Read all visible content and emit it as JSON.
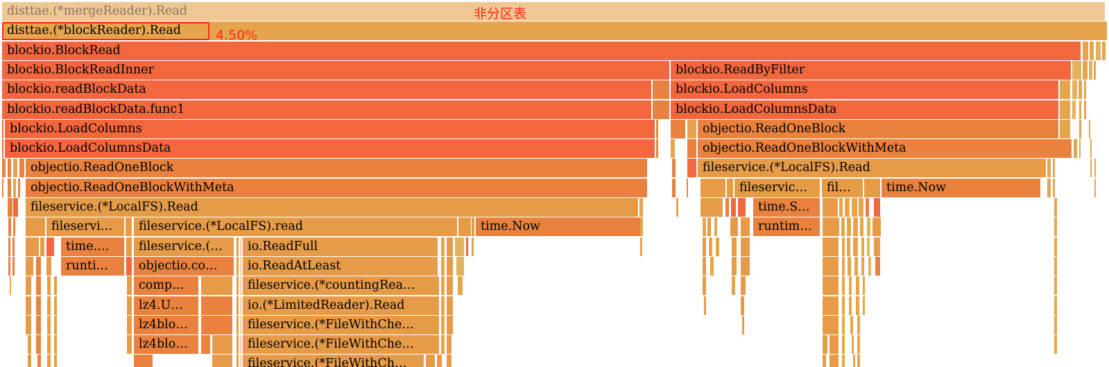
{
  "annotations": {
    "title": "非分区表",
    "percent": "4.50%"
  },
  "colors": {
    "root": "#efc793",
    "l1": "#e6a44c",
    "hot": "#f3673f",
    "warm": "#e8823e",
    "mid": "#e59b48",
    "yellow": "#e0b45c"
  },
  "frames": [
    {
      "label": "disttae.(*mergeReader).Read",
      "color": "root",
      "muted": true
    },
    {
      "label": "disttae.(*blockReader).Read",
      "color": "l1"
    },
    {
      "label": "blockio.BlockRead",
      "color": "hot"
    },
    {
      "label": "blockio.BlockReadInner",
      "color": "hot"
    },
    {
      "label": "blockio.ReadByFilter",
      "color": "hot"
    },
    {
      "label": "blockio.readBlockData",
      "color": "hot"
    },
    {
      "label": "blockio.LoadColumns",
      "color": "hot"
    },
    {
      "label": "blockio.readBlockData.func1",
      "color": "hot"
    },
    {
      "label": "blockio.LoadColumnsData",
      "color": "hot"
    },
    {
      "label": "blockio.LoadColumns",
      "color": "hot"
    },
    {
      "label": "objectio.ReadOneBlock",
      "color": "warm"
    },
    {
      "label": "blockio.LoadColumnsData",
      "color": "hot"
    },
    {
      "label": "objectio.ReadOneBlockWithMeta",
      "color": "warm"
    },
    {
      "label": "objectio.ReadOneBlock",
      "color": "warm"
    },
    {
      "label": "fileservice.(*LocalFS).Read",
      "color": "mid"
    },
    {
      "label": "objectio.ReadOneBlockWithMeta",
      "color": "warm"
    },
    {
      "label": "fileservic…",
      "color": "mid"
    },
    {
      "label": "fil…",
      "color": "mid"
    },
    {
      "label": "time.Now",
      "color": "warm"
    },
    {
      "label": "fileservice.(*LocalFS).Read",
      "color": "mid"
    },
    {
      "label": "time.S…",
      "color": "warm"
    },
    {
      "label": "fileservi…",
      "color": "mid"
    },
    {
      "label": "fileservice.(*LocalFS).read",
      "color": "mid"
    },
    {
      "label": "time.Now",
      "color": "warm"
    },
    {
      "label": "runtim…",
      "color": "warm"
    },
    {
      "label": "time.…",
      "color": "warm"
    },
    {
      "label": "fileservice.(…",
      "color": "mid"
    },
    {
      "label": "io.ReadFull",
      "color": "mid"
    },
    {
      "label": "runti…",
      "color": "warm"
    },
    {
      "label": "objectio.co…",
      "color": "warm"
    },
    {
      "label": "io.ReadAtLeast",
      "color": "mid"
    },
    {
      "label": "comp…",
      "color": "warm"
    },
    {
      "label": "fileservice.(*countingRea…",
      "color": "mid"
    },
    {
      "label": "lz4.U…",
      "color": "warm"
    },
    {
      "label": "io.(*LimitedReader).Read",
      "color": "mid"
    },
    {
      "label": "lz4blo…",
      "color": "warm"
    },
    {
      "label": "fileservice.(*FileWithChe…",
      "color": "mid"
    },
    {
      "label": "lz4blo…",
      "color": "warm"
    },
    {
      "label": "fileservice.(*FileWithChe…",
      "color": "mid"
    },
    {
      "label": "fileservice.(*FileWithCh…",
      "color": "mid"
    }
  ]
}
